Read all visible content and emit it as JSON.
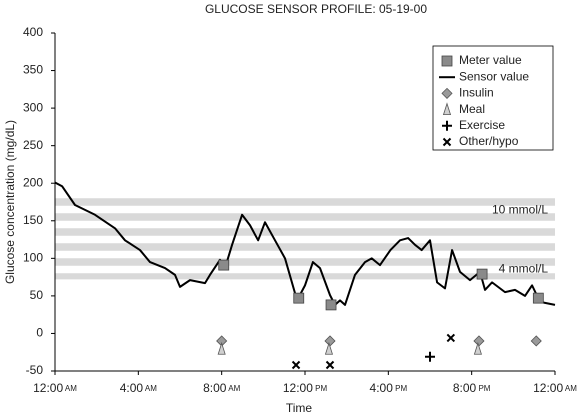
{
  "chart_data": {
    "type": "line",
    "title": "GLUCOSE SENSOR PROFILE: 05-19-00",
    "xlabel": "Time",
    "ylabel": "Glucose concentration (mg/dL)",
    "xlim": [
      0,
      24
    ],
    "xticks": [
      {
        "value": 0,
        "label": "12:00 AM"
      },
      {
        "value": 4,
        "label": "4:00 AM"
      },
      {
        "value": 8,
        "label": "8:00 AM"
      },
      {
        "value": 12,
        "label": "12:00 PM"
      },
      {
        "value": 16,
        "label": "4:00 PM"
      },
      {
        "value": 20,
        "label": "8:00 PM"
      },
      {
        "value": 24,
        "label": "12:00 AM"
      }
    ],
    "ylim": [
      -50,
      400
    ],
    "yticks": [
      -50,
      0,
      50,
      100,
      150,
      200,
      250,
      300,
      350,
      400
    ],
    "reference_band": [
      72,
      180
    ],
    "annotations": [
      {
        "text": "10 mmol/L",
        "y": 180
      },
      {
        "text": "4 mmol/L",
        "y": 72
      }
    ],
    "series": [
      {
        "name": "Meter value",
        "marker": "square",
        "color": "#8a8a8a",
        "x": [
          8.1,
          11.7,
          13.25,
          20.5,
          23.2
        ],
        "values": [
          91,
          47,
          38,
          79,
          47
        ]
      },
      {
        "name": "Sensor value",
        "marker": "line",
        "color": "#000000",
        "x": [
          0,
          0.34,
          0.96,
          1.92,
          2.88,
          3.36,
          4.08,
          4.56,
          5.28,
          5.76,
          6.0,
          6.48,
          7.2,
          7.44,
          7.92,
          8.16,
          8.5,
          8.98,
          9.36,
          9.75,
          10.08,
          10.56,
          11.04,
          11.62,
          12.0,
          12.38,
          12.72,
          13.2,
          13.44,
          13.68,
          13.92,
          14.4,
          14.88,
          15.2,
          15.6,
          16.1,
          16.56,
          16.95,
          17.28,
          17.6,
          18.0,
          18.34,
          18.72,
          19.06,
          19.44,
          19.92,
          20.4,
          20.64,
          20.98,
          21.6,
          22.08,
          22.56,
          22.9,
          23.28,
          24
        ],
        "values": [
          201,
          196,
          171,
          158,
          140,
          124,
          111,
          95,
          87,
          78,
          62,
          71,
          67,
          78,
          98,
          87,
          118,
          158,
          144,
          124,
          148,
          124,
          100,
          44,
          64,
          95,
          87,
          51,
          38,
          44,
          38,
          78,
          95,
          100,
          91,
          111,
          124,
          127,
          118,
          111,
          124,
          68,
          60,
          111,
          82,
          71,
          82,
          58,
          68,
          55,
          58,
          50,
          64,
          42,
          38
        ]
      },
      {
        "name": "Insulin",
        "marker": "diamond",
        "color": "#9a9a9a",
        "x": [
          8.0,
          13.2,
          20.35,
          23.1
        ],
        "values": [
          -10,
          -10,
          -10,
          -10
        ]
      },
      {
        "name": "Meal",
        "marker": "triangle",
        "color": "#d0d0d0",
        "x": [
          8.0,
          13.15,
          20.3
        ],
        "values": [
          -21,
          -21,
          -21
        ]
      },
      {
        "name": "Exercise",
        "marker": "plus",
        "color": "#000000",
        "x": [
          18.0
        ],
        "values": [
          -31
        ]
      },
      {
        "name": "Other/hypo",
        "marker": "cross",
        "color": "#000000",
        "x": [
          11.57,
          13.2,
          19.0
        ],
        "values": [
          -42,
          -42,
          -6
        ]
      }
    ]
  }
}
